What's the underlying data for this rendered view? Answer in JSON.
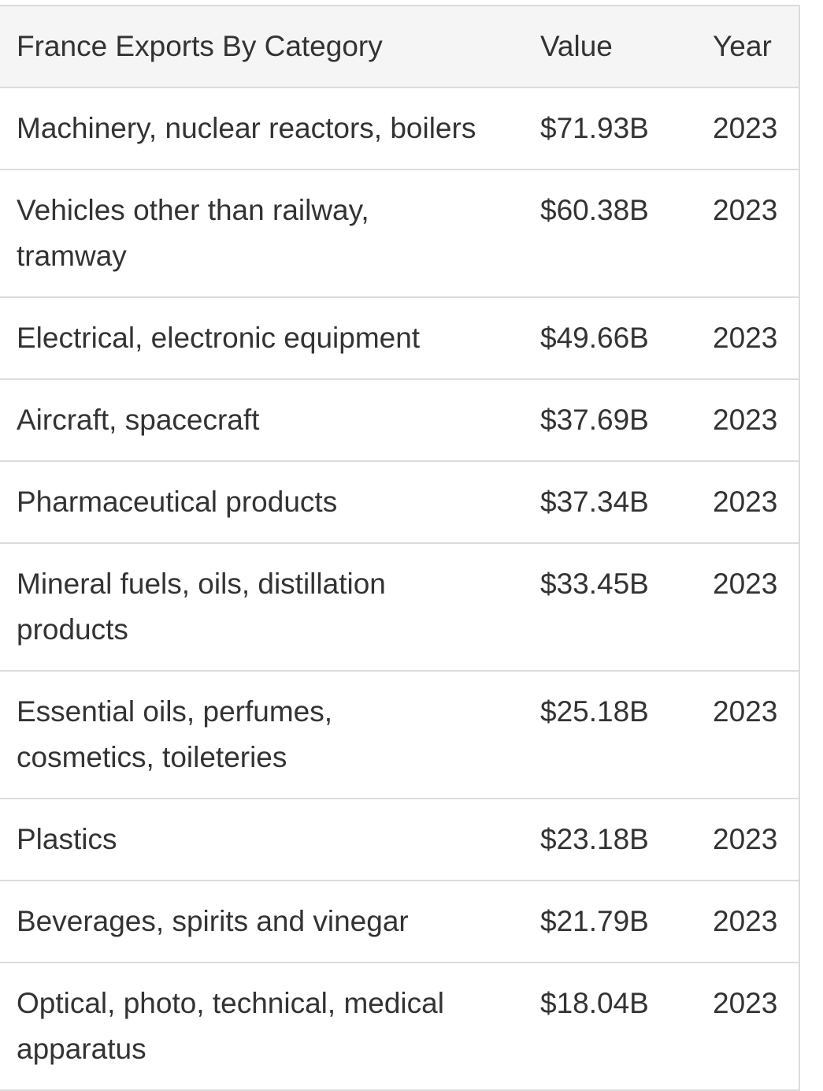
{
  "table": {
    "headers": {
      "category": "France Exports By Category",
      "value": "Value",
      "year": "Year"
    },
    "rows": [
      {
        "category": "Machinery, nuclear reactors, boilers",
        "value": "$71.93B",
        "year": "2023"
      },
      {
        "category": "Vehicles other than railway, tramway",
        "value": "$60.38B",
        "year": "2023"
      },
      {
        "category": "Electrical, electronic equipment",
        "value": "$49.66B",
        "year": "2023"
      },
      {
        "category": "Aircraft, spacecraft",
        "value": "$37.69B",
        "year": "2023"
      },
      {
        "category": "Pharmaceutical products",
        "value": "$37.34B",
        "year": "2023"
      },
      {
        "category": "Mineral fuels, oils, distillation products",
        "value": "$33.45B",
        "year": "2023"
      },
      {
        "category": "Essential oils, perfumes, cosmetics, toileteries",
        "value": "$25.18B",
        "year": "2023"
      },
      {
        "category": "Plastics",
        "value": "$23.18B",
        "year": "2023"
      },
      {
        "category": "Beverages, spirits and vinegar",
        "value": "$21.79B",
        "year": "2023"
      },
      {
        "category": "Optical, photo, technical, medical apparatus",
        "value": "$18.04B",
        "year": "2023"
      }
    ]
  }
}
